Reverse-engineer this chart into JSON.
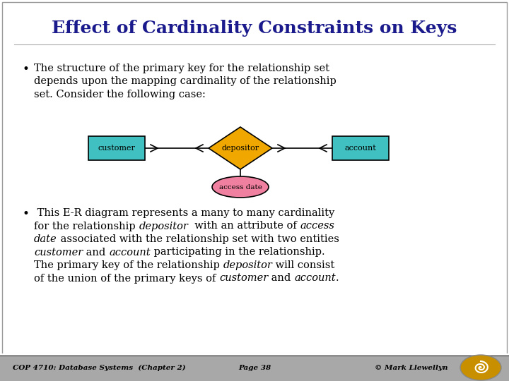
{
  "title": "Effect of Cardinality Constraints on Keys",
  "title_color": "#1a1a8c",
  "title_fontsize": 18,
  "slide_bg": "#ffffff",
  "bullet1_lines": [
    "The structure of the primary key for the relationship set",
    "depends upon the mapping cardinality of the relationship",
    "set. Consider the following case:"
  ],
  "bullet2_lines": [
    [
      [
        " This E-R diagram represents a many to many cardinality",
        "normal"
      ]
    ],
    [
      [
        "for the relationship ",
        "normal"
      ],
      [
        "depositor",
        "italic"
      ],
      [
        "  with an attribute of ",
        "normal"
      ],
      [
        "access",
        "italic"
      ]
    ],
    [
      [
        "date",
        "italic"
      ],
      [
        " associated with the relationship set with two entities",
        "normal"
      ]
    ],
    [
      [
        "customer",
        "italic"
      ],
      [
        " and ",
        "normal"
      ],
      [
        "account",
        "italic"
      ],
      [
        " participating in the relationship.",
        "normal"
      ]
    ],
    [
      [
        "The primary key of the relationship ",
        "normal"
      ],
      [
        "depositor",
        "italic"
      ],
      [
        " will consist",
        "normal"
      ]
    ],
    [
      [
        "of the union of the primary keys of ",
        "normal"
      ],
      [
        "customer",
        "italic"
      ],
      [
        " and ",
        "normal"
      ],
      [
        "account",
        "italic"
      ],
      [
        ".",
        "normal"
      ]
    ]
  ],
  "entity_color": "#40c0c0",
  "relation_color": "#f0a800",
  "attr_color": "#f080a0",
  "footer_text_left": "COP 4710: Database Systems  (Chapter 2)",
  "footer_text_mid": "Page 38",
  "footer_text_right": "© Mark Llewellyn",
  "footer_bg": "#a8a8a8"
}
